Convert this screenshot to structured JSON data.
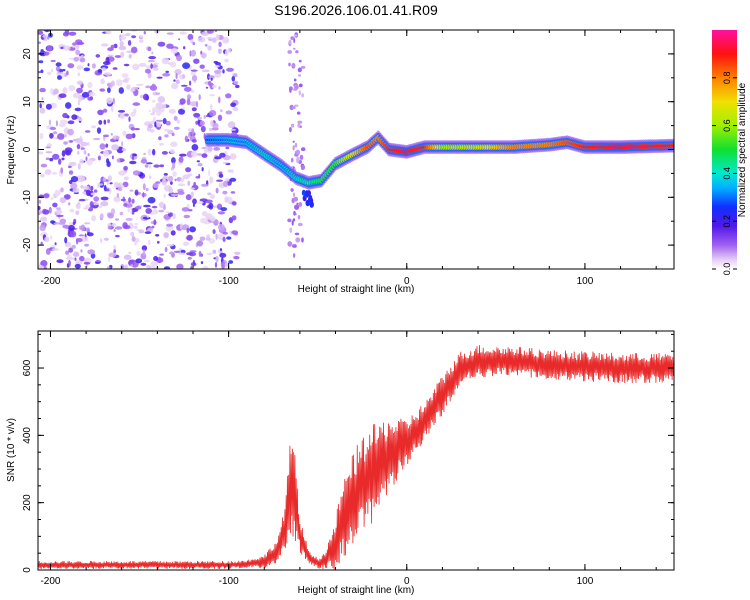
{
  "figure_title": "S196.2026.106.01.41.R09",
  "colors": {
    "snr_line": "#e82a2a",
    "axis": "#000000",
    "background": "#ffffff"
  },
  "chart_data": [
    {
      "type": "heatmap",
      "title": "",
      "xlabel": "Height of straight line (km)",
      "ylabel": "Frequency (Hz)",
      "xlim": [
        -207,
        150
      ],
      "ylim": [
        -25,
        25
      ],
      "xticks": [
        -200,
        -100,
        0,
        100
      ],
      "yticks": [
        -20,
        -10,
        0,
        10,
        20
      ],
      "xtick_labels": [
        "-200",
        "-100",
        "0",
        "100"
      ],
      "ytick_labels": [
        "-20",
        "-10",
        "0",
        "10",
        "20"
      ],
      "ridge": {
        "x": [
          -110,
          -100,
          -90,
          -80,
          -70,
          -62,
          -55,
          -48,
          -40,
          -30,
          -22,
          -16,
          -10,
          0,
          10,
          20,
          40,
          60,
          80,
          90,
          100,
          120,
          150
        ],
        "frequency": [
          2,
          2,
          1.5,
          -1,
          -3.5,
          -6,
          -7,
          -6.5,
          -3,
          -1,
          0.5,
          2.5,
          0,
          -0.5,
          0.5,
          0.5,
          0.5,
          0.5,
          1,
          1.5,
          0.5,
          0.5,
          0.8
        ],
        "amplitude": [
          0.25,
          0.3,
          0.3,
          0.35,
          0.3,
          0.35,
          0.4,
          0.45,
          0.5,
          0.7,
          0.85,
          0.8,
          0.9,
          0.95,
          0.9,
          0.6,
          0.65,
          0.8,
          0.8,
          0.85,
          0.9,
          0.95,
          0.9
        ]
      },
      "noise_x_range": [
        -207,
        -95
      ],
      "colorbar": {
        "label": "Normalized spectral amplitude",
        "range": [
          0,
          1
        ],
        "ticks": [
          0.0,
          0.2,
          0.4,
          0.6,
          0.8
        ],
        "tick_labels": [
          "0.0",
          "0.2",
          "0.4",
          "0.6",
          "0.8"
        ]
      }
    },
    {
      "type": "line",
      "title": "",
      "xlabel": "Height of straight line (km)",
      "ylabel": "SNR (10 * v/v)",
      "xlim": [
        -207,
        150
      ],
      "ylim": [
        0,
        710
      ],
      "xticks": [
        -200,
        -100,
        0,
        100
      ],
      "yticks": [
        0,
        200,
        400,
        600
      ],
      "xtick_labels": [
        "-200",
        "-100",
        "0",
        "100"
      ],
      "ytick_labels": [
        "0",
        "200",
        "400",
        "600"
      ],
      "series": [
        {
          "name": "SNR",
          "envelope_x": [
            -207,
            -100,
            -90,
            -80,
            -72,
            -68,
            -65,
            -62,
            -60,
            -55,
            -50,
            -45,
            -40,
            -35,
            -30,
            -25,
            -20,
            -15,
            -10,
            -5,
            0,
            10,
            20,
            30,
            40,
            60,
            80,
            100,
            120,
            150
          ],
          "envelope_mean": [
            15,
            15,
            18,
            25,
            60,
            140,
            250,
            200,
            100,
            40,
            20,
            30,
            80,
            160,
            210,
            250,
            280,
            310,
            340,
            360,
            380,
            440,
            520,
            600,
            620,
            620,
            610,
            605,
            600,
            600
          ],
          "envelope_halfwidth": [
            12,
            12,
            12,
            20,
            40,
            80,
            160,
            120,
            50,
            20,
            15,
            30,
            80,
            120,
            140,
            150,
            150,
            130,
            120,
            90,
            70,
            60,
            60,
            50,
            50,
            45,
            45,
            45,
            45,
            45
          ]
        }
      ]
    }
  ]
}
